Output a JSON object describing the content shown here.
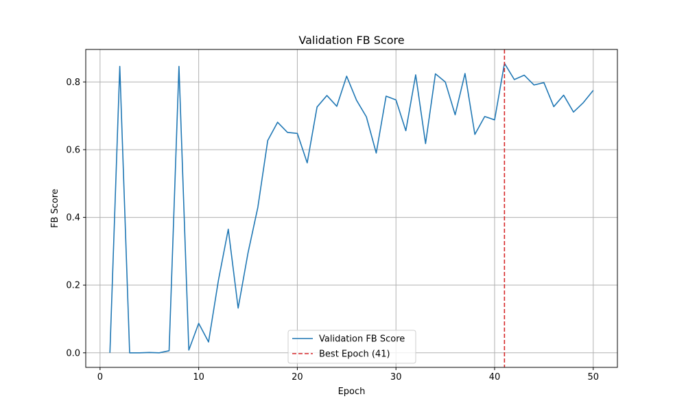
{
  "chart_data": {
    "type": "line",
    "title": "Validation FB Score",
    "xlabel": "Epoch",
    "ylabel": "FB Score",
    "xlim": [
      -1.45,
      52.45
    ],
    "ylim": [
      -0.043,
      0.896
    ],
    "xticks": [
      0,
      10,
      20,
      30,
      40,
      50
    ],
    "xtick_labels": [
      "0",
      "10",
      "20",
      "30",
      "40",
      "50"
    ],
    "yticks": [
      0.0,
      0.2,
      0.4,
      0.6,
      0.8
    ],
    "ytick_labels": [
      "0.0",
      "0.2",
      "0.4",
      "0.6",
      "0.8"
    ],
    "grid": true,
    "legend_position": "lower-center",
    "series": [
      {
        "name": "Validation FB Score",
        "color": "#1f77b4",
        "style": "solid",
        "x": [
          1,
          2,
          3,
          4,
          5,
          6,
          7,
          8,
          9,
          10,
          11,
          12,
          13,
          14,
          15,
          16,
          17,
          18,
          19,
          20,
          21,
          22,
          23,
          24,
          25,
          26,
          27,
          28,
          29,
          30,
          31,
          32,
          33,
          34,
          35,
          36,
          37,
          38,
          39,
          40,
          41,
          42,
          43,
          44,
          45,
          46,
          47,
          48,
          49,
          50
        ],
        "y": [
          0.0,
          0.846,
          0.0,
          0.0,
          0.001,
          0.0,
          0.006,
          0.846,
          0.008,
          0.087,
          0.032,
          0.214,
          0.365,
          0.132,
          0.295,
          0.43,
          0.627,
          0.681,
          0.651,
          0.648,
          0.561,
          0.726,
          0.76,
          0.728,
          0.817,
          0.746,
          0.697,
          0.59,
          0.758,
          0.747,
          0.656,
          0.821,
          0.618,
          0.824,
          0.8,
          0.703,
          0.825,
          0.645,
          0.698,
          0.688,
          0.855,
          0.807,
          0.82,
          0.791,
          0.798,
          0.727,
          0.761,
          0.711,
          0.739,
          0.775
        ]
      }
    ],
    "vlines": [
      {
        "name": "Best Epoch (41)",
        "x": 41,
        "color": "#d62728",
        "style": "dashed"
      }
    ]
  }
}
